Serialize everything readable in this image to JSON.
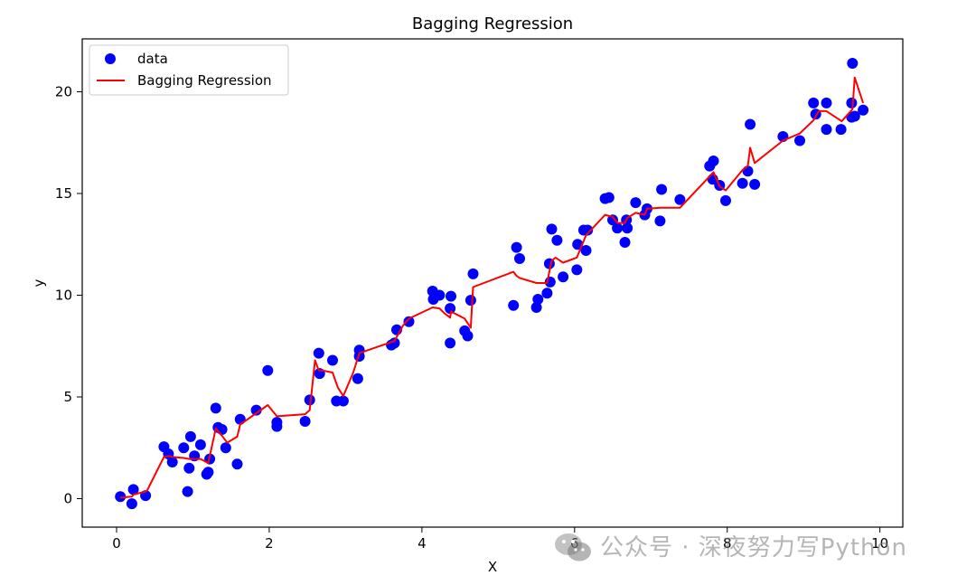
{
  "chart_data": {
    "type": "scatter",
    "title": "Bagging Regression",
    "xlabel": "X",
    "ylabel": "y",
    "xlim": [
      -0.45,
      10.3
    ],
    "ylim": [
      -1.4,
      22.6
    ],
    "xticks": [
      0,
      2,
      4,
      6,
      8,
      10
    ],
    "yticks": [
      0,
      5,
      10,
      15,
      20
    ],
    "grid": false,
    "legend_position": "top-left",
    "series": [
      {
        "name": "data",
        "kind": "scatter",
        "color": "#0000ff",
        "x": [
          0.05,
          0.2,
          0.22,
          0.38,
          0.62,
          0.68,
          0.73,
          0.88,
          0.93,
          0.95,
          0.97,
          1.02,
          1.1,
          1.18,
          1.2,
          1.22,
          1.3,
          1.33,
          1.38,
          1.43,
          1.58,
          1.62,
          1.83,
          1.98,
          2.1,
          2.1,
          2.47,
          2.53,
          2.65,
          2.66,
          2.83,
          2.88,
          2.97,
          3.16,
          3.18,
          3.18,
          3.6,
          3.64,
          3.67,
          3.83,
          4.14,
          4.15,
          4.23,
          4.37,
          4.37,
          4.38,
          4.56,
          4.6,
          4.64,
          4.67,
          5.2,
          5.24,
          5.28,
          5.5,
          5.52,
          5.64,
          5.67,
          5.68,
          5.7,
          5.77,
          5.85,
          6.03,
          6.04,
          6.12,
          6.15,
          6.17,
          6.4,
          6.45,
          6.5,
          6.56,
          6.66,
          6.68,
          6.69,
          6.8,
          6.92,
          6.95,
          7.12,
          7.14,
          7.38,
          7.77,
          7.81,
          7.82,
          7.9,
          7.98,
          8.2,
          8.27,
          8.3,
          8.36,
          8.73,
          8.95,
          9.13,
          9.16,
          9.3,
          9.3,
          9.49,
          9.63,
          9.63,
          9.64,
          9.67,
          9.78
        ],
        "y": [
          0.1,
          -0.25,
          0.45,
          0.15,
          2.55,
          2.2,
          1.8,
          2.5,
          0.35,
          1.5,
          3.05,
          2.1,
          2.65,
          1.2,
          1.3,
          1.95,
          4.45,
          3.5,
          3.4,
          2.5,
          1.7,
          3.9,
          4.35,
          6.3,
          3.55,
          3.75,
          3.8,
          4.85,
          7.15,
          6.15,
          6.8,
          4.8,
          4.8,
          5.9,
          7.0,
          7.3,
          7.55,
          7.65,
          8.3,
          8.7,
          10.2,
          9.8,
          10.0,
          7.65,
          9.35,
          9.95,
          8.25,
          8.0,
          9.75,
          11.05,
          9.5,
          12.35,
          11.8,
          9.4,
          9.8,
          10.1,
          11.55,
          10.65,
          13.25,
          12.7,
          10.9,
          11.25,
          12.5,
          13.2,
          12.2,
          13.2,
          14.75,
          14.8,
          13.7,
          13.3,
          12.6,
          13.7,
          13.3,
          14.55,
          13.95,
          14.25,
          13.65,
          15.2,
          14.7,
          16.35,
          15.7,
          16.6,
          15.4,
          14.65,
          15.5,
          16.1,
          18.4,
          15.45,
          17.8,
          17.6,
          19.45,
          18.9,
          19.45,
          18.15,
          18.15,
          18.75,
          19.45,
          21.4,
          18.8,
          19.1
        ]
      },
      {
        "name": "Bagging Regression",
        "kind": "line",
        "color": "#ff0000",
        "x": [
          0.05,
          0.2,
          0.22,
          0.38,
          0.4,
          0.62,
          0.68,
          0.73,
          0.88,
          0.95,
          1.1,
          1.2,
          1.3,
          1.38,
          1.45,
          1.58,
          1.62,
          1.83,
          1.98,
          2.1,
          2.47,
          2.53,
          2.6,
          2.65,
          2.7,
          2.83,
          2.9,
          2.97,
          3.1,
          3.18,
          3.6,
          3.64,
          3.75,
          3.83,
          4.14,
          4.23,
          4.3,
          4.37,
          4.38,
          4.56,
          4.64,
          4.67,
          5.2,
          5.24,
          5.28,
          5.5,
          5.64,
          5.67,
          5.7,
          5.75,
          5.85,
          6.03,
          6.15,
          6.4,
          6.5,
          6.56,
          6.66,
          6.69,
          6.8,
          6.92,
          6.95,
          7.12,
          7.38,
          7.77,
          7.82,
          7.9,
          7.98,
          8.2,
          8.27,
          8.3,
          8.36,
          8.73,
          8.95,
          9.13,
          9.2,
          9.3,
          9.5,
          9.63,
          9.64,
          9.67,
          9.78
        ],
        "y": [
          0.05,
          0.1,
          0.2,
          0.35,
          0.4,
          2.05,
          2.1,
          2.05,
          2.0,
          1.95,
          1.95,
          1.75,
          3.45,
          3.1,
          2.75,
          3.05,
          3.65,
          4.2,
          4.6,
          4.05,
          4.15,
          4.35,
          6.8,
          6.3,
          6.3,
          6.2,
          5.45,
          5.05,
          6.2,
          7.15,
          7.7,
          7.75,
          8.5,
          8.85,
          9.4,
          9.35,
          9.1,
          8.9,
          9.2,
          8.85,
          8.4,
          10.4,
          11.15,
          10.95,
          10.85,
          10.6,
          10.6,
          11.15,
          11.7,
          11.85,
          11.6,
          11.85,
          12.95,
          13.95,
          13.85,
          13.55,
          13.55,
          13.8,
          14.05,
          13.95,
          14.25,
          14.3,
          14.3,
          15.85,
          16.05,
          15.35,
          15.15,
          16.15,
          16.35,
          17.25,
          16.5,
          17.6,
          17.95,
          18.6,
          19.05,
          19.05,
          18.55,
          19.1,
          19.15,
          20.7,
          19.45
        ]
      }
    ]
  },
  "watermark": {
    "text": "公众号 · 深夜努力写Python",
    "logo": "wechat-logo-icon"
  }
}
